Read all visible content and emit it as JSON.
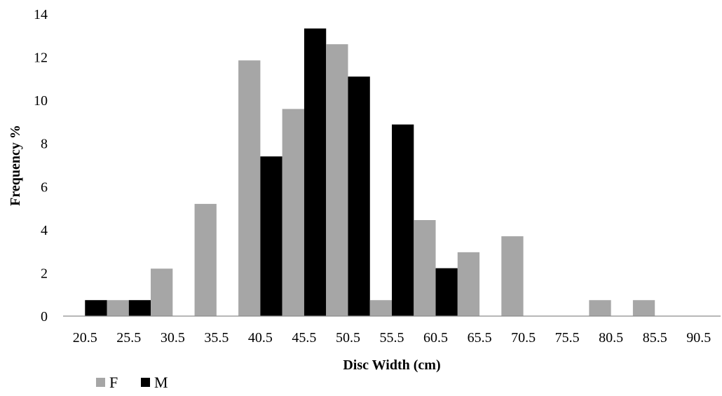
{
  "chart_data": {
    "type": "bar",
    "xlabel": "Disc Width (cm)",
    "ylabel": "Frequency %",
    "categories": [
      "20.5",
      "25.5",
      "30.5",
      "35.5",
      "40.5",
      "45.5",
      "50.5",
      "55.5",
      "60.5",
      "65.5",
      "70.5",
      "75.5",
      "80.5",
      "85.5",
      "90.5"
    ],
    "ylim": [
      0,
      14
    ],
    "yticks": [
      0,
      2,
      4,
      6,
      8,
      10,
      12,
      14
    ],
    "grid": false,
    "legend_position": "bottom-left",
    "series": [
      {
        "name": "F",
        "color": "#a6a6a6",
        "values": [
          0,
          0.74,
          2.2,
          5.2,
          11.85,
          9.6,
          12.6,
          0.74,
          4.45,
          2.96,
          3.7,
          0,
          0.74,
          0.74,
          0
        ]
      },
      {
        "name": "M",
        "color": "#000000",
        "values": [
          0.74,
          0.74,
          0,
          0,
          7.4,
          13.33,
          11.1,
          8.88,
          2.22,
          0,
          0,
          0,
          0,
          0,
          0
        ]
      }
    ]
  }
}
